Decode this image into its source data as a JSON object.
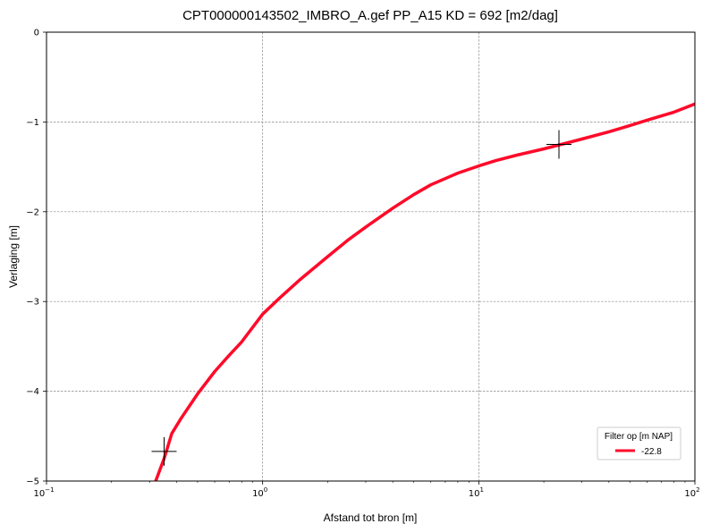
{
  "chart_data": {
    "type": "line",
    "title": "CPT000000143502_IMBRO_A.gef PP_A15   KD = 692 [m2/dag]",
    "xlabel": "Afstand tot bron [m]",
    "ylabel": "Verlaging [m]",
    "xscale": "log",
    "xlim": [
      0.1,
      100
    ],
    "ylim": [
      -5,
      0
    ],
    "x_ticks": [
      {
        "value": 0.1,
        "base": "10",
        "exp": "−1"
      },
      {
        "value": 1,
        "base": "10",
        "exp": "0"
      },
      {
        "value": 10,
        "base": "10",
        "exp": "1"
      },
      {
        "value": 100,
        "base": "10",
        "exp": "2"
      }
    ],
    "y_ticks": [
      {
        "value": 0,
        "label": "0"
      },
      {
        "value": -1,
        "label": "−1"
      },
      {
        "value": -2,
        "label": "−2"
      },
      {
        "value": -3,
        "label": "−3"
      },
      {
        "value": -4,
        "label": "−4"
      },
      {
        "value": -5,
        "label": "−5"
      }
    ],
    "grid": true,
    "legend": {
      "title": "Filter op [m NAP]",
      "placement": "lower-right"
    },
    "series": [
      {
        "name": "-22.8",
        "color": "#ff0a2a",
        "x": [
          0.32,
          0.35,
          0.38,
          0.42,
          0.5,
          0.6,
          0.7,
          0.8,
          1.0,
          1.2,
          1.5,
          2.0,
          2.5,
          3.0,
          4.0,
          5.0,
          6.0,
          8.0,
          10.0,
          12.0,
          15.0,
          20.0,
          25.0,
          30.0,
          40.0,
          50.0,
          60.0,
          80.0,
          100.0
        ],
        "y": [
          -5.0,
          -4.75,
          -4.47,
          -4.3,
          -4.03,
          -3.78,
          -3.6,
          -3.45,
          -3.14,
          -2.96,
          -2.75,
          -2.5,
          -2.31,
          -2.17,
          -1.96,
          -1.81,
          -1.7,
          -1.57,
          -1.49,
          -1.43,
          -1.37,
          -1.3,
          -1.24,
          -1.19,
          -1.11,
          -1.04,
          -0.98,
          -0.89,
          -0.8
        ]
      }
    ],
    "markers": [
      {
        "x": 0.35,
        "y": -4.67,
        "symbol": "+"
      },
      {
        "x": 23.5,
        "y": -1.25,
        "symbol": "+"
      }
    ]
  }
}
